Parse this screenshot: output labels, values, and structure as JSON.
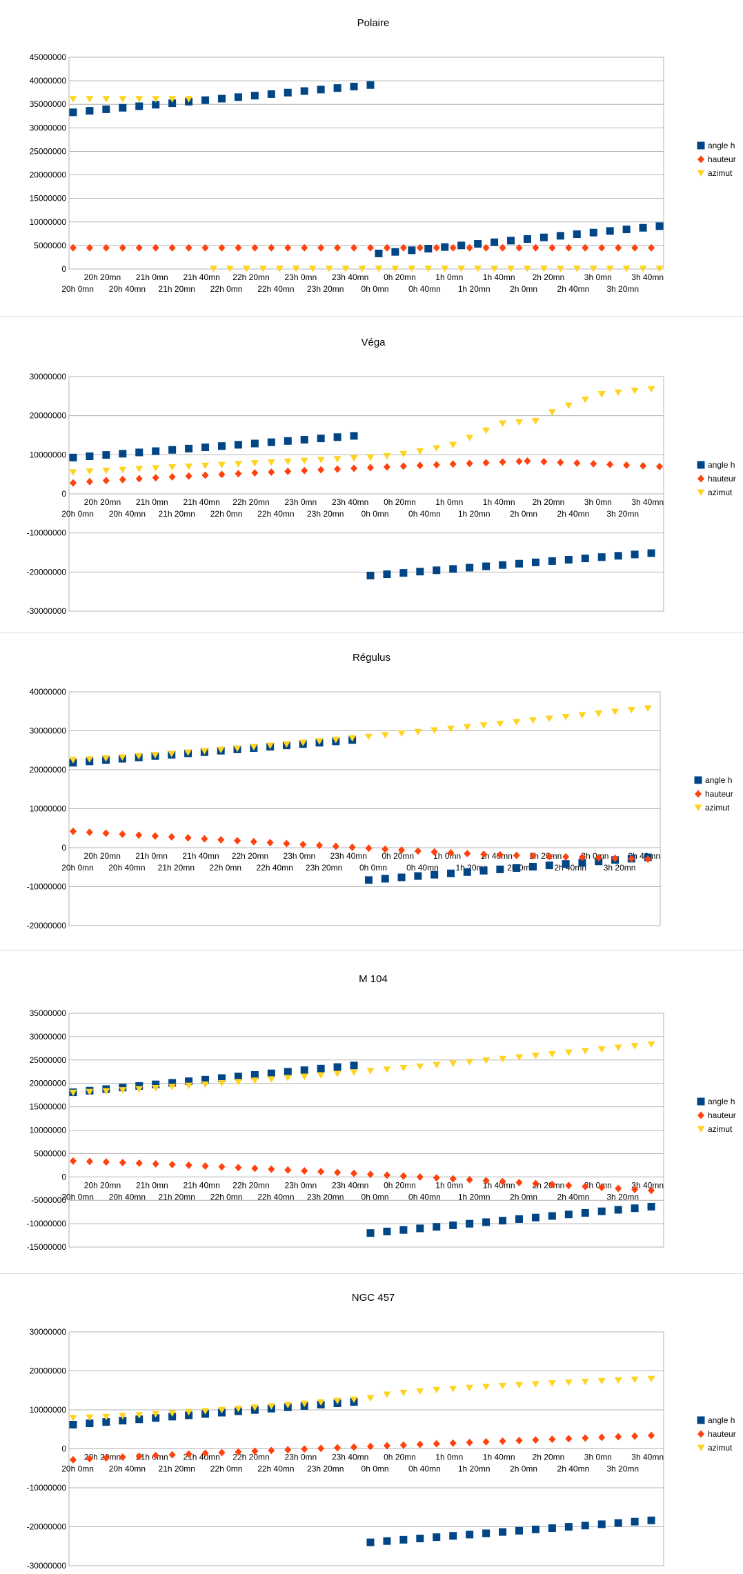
{
  "colors": {
    "angle_h": "#004586",
    "hauteur": "#ff420e",
    "azimut": "#ffd320"
  },
  "x_labels": [
    "20h 0mn",
    "20h 20mn",
    "20h 40mn",
    "21h 0mn",
    "21h 20mn",
    "21h 40mn",
    "22h 0mn",
    "22h 20mn",
    "22h 40mn",
    "23h 0mn",
    "23h 20mn",
    "23h 40mn",
    "0h 0mn",
    "0h 20mn",
    "0h 40mn",
    "1h 0mn",
    "1h 20mn",
    "1h 40mn",
    "2h 0mn",
    "2h 20mn",
    "2h 40mn",
    "3h 0mn",
    "3h 20mn",
    "3h 40mn"
  ],
  "chart_data": [
    {
      "type": "scatter",
      "title": "Polaire",
      "ylim": [
        0,
        45000000
      ],
      "ystep": 5000000,
      "yticks": [
        "0",
        "5000000",
        "10000000",
        "15000000",
        "20000000",
        "25000000",
        "30000000",
        "35000000",
        "40000000",
        "45000000"
      ],
      "x_label_row_mode": "zero",
      "grid": true,
      "legend": "right",
      "series": [
        {
          "name": "angle h",
          "marker": "square",
          "segments": [
            {
              "start": 0,
              "end": 36,
              "from": 33300000,
              "to": 39100000,
              "curve": 1
            },
            {
              "start": 37,
              "end": 71,
              "from": 3300000,
              "to": 9100000,
              "curve": 1
            }
          ]
        },
        {
          "name": "hauteur",
          "marker": "diamond",
          "segments": [
            {
              "start": 0,
              "end": 71,
              "from": 4500000,
              "to": 4500000,
              "curve": 1
            }
          ]
        },
        {
          "name": "azimut",
          "marker": "triangle",
          "segments": [
            {
              "start": 0,
              "end": 15,
              "from": 36100000,
              "to": 36100000,
              "curve": 1
            },
            {
              "start": 17,
              "end": 71,
              "from": 50000,
              "to": 50000,
              "curve": 1
            }
          ]
        }
      ]
    },
    {
      "type": "scatter",
      "title": "Véga",
      "ylim": [
        -30000000,
        30000000
      ],
      "ystep": 10000000,
      "yticks": [
        "-30000000",
        "-20000000",
        "-10000000",
        "0",
        "10000000",
        "20000000",
        "30000000"
      ],
      "x_label_row_mode": "zero",
      "grid": true,
      "legend": "right",
      "series": [
        {
          "name": "angle h",
          "marker": "square",
          "segments": [
            {
              "start": 0,
              "end": 35,
              "from": 9300000,
              "to": 15000000,
              "curve": 1
            },
            {
              "start": 36,
              "end": 71,
              "from": -20900000,
              "to": -15000000,
              "curve": 1
            }
          ]
        },
        {
          "name": "hauteur",
          "marker": "diamond",
          "segments": [
            {
              "start": 0,
              "end": 55,
              "from": 2800000,
              "to": 8400000,
              "curve": 0.85
            },
            {
              "start": 55,
              "end": 71,
              "from": 8400000,
              "to": 7000000,
              "curve": 1
            }
          ]
        },
        {
          "name": "azimut",
          "marker": "triangle",
          "segments": [
            {
              "start": 0,
              "end": 36,
              "from": 5500000,
              "to": 9300000,
              "curve": 1
            },
            {
              "start": 36,
              "end": 46,
              "from": 9300000,
              "to": 12500000,
              "curve": 1.4
            },
            {
              "start": 46,
              "end": 52,
              "from": 12500000,
              "to": 18000000,
              "curve": 1
            },
            {
              "start": 52,
              "end": 56,
              "from": 18000000,
              "to": 18600000,
              "curve": 1
            },
            {
              "start": 56,
              "end": 64,
              "from": 18600000,
              "to": 25500000,
              "curve": 0.8
            },
            {
              "start": 64,
              "end": 71,
              "from": 25500000,
              "to": 27000000,
              "curve": 1
            }
          ]
        }
      ]
    },
    {
      "type": "scatter",
      "title": "Régulus",
      "ylim": [
        -20000000,
        40000000
      ],
      "ystep": 10000000,
      "yticks": [
        "-20000000",
        "-10000000",
        "0",
        "10000000",
        "20000000",
        "30000000",
        "40000000"
      ],
      "x_label_row_mode": "zero",
      "grid": true,
      "legend": "right",
      "series": [
        {
          "name": "angle h",
          "marker": "square",
          "segments": [
            {
              "start": 0,
              "end": 35,
              "from": 21800000,
              "to": 27800000,
              "curve": 1
            },
            {
              "start": 36,
              "end": 71,
              "from": -8300000,
              "to": -2300000,
              "curve": 1
            }
          ]
        },
        {
          "name": "hauteur",
          "marker": "diamond",
          "segments": [
            {
              "start": 0,
              "end": 44,
              "from": 4200000,
              "to": -1100000,
              "curve": 1
            },
            {
              "start": 44,
              "end": 71,
              "from": -1100000,
              "to": -3000000,
              "curve": 0.8
            }
          ]
        },
        {
          "name": "azimut",
          "marker": "triangle",
          "segments": [
            {
              "start": 0,
              "end": 71,
              "from": 22500000,
              "to": 36000000,
              "curve": 1.2
            }
          ]
        }
      ]
    },
    {
      "type": "scatter",
      "title": "M 104",
      "ylim": [
        -15000000,
        35000000
      ],
      "ystep": 5000000,
      "yticks": [
        "-15000000",
        "-10000000",
        "-5000000",
        "0",
        "5000000",
        "10000000",
        "15000000",
        "20000000",
        "25000000",
        "30000000",
        "35000000"
      ],
      "x_label_row_mode": "zero",
      "grid": true,
      "legend": "right",
      "series": [
        {
          "name": "angle h",
          "marker": "square",
          "segments": [
            {
              "start": 0,
              "end": 35,
              "from": 18100000,
              "to": 24000000,
              "curve": 1
            },
            {
              "start": 36,
              "end": 71,
              "from": -12000000,
              "to": -6200000,
              "curve": 1
            }
          ]
        },
        {
          "name": "hauteur",
          "marker": "diamond",
          "segments": [
            {
              "start": 0,
              "end": 71,
              "from": 3400000,
              "to": -3000000,
              "curve": 1.2
            }
          ]
        },
        {
          "name": "azimut",
          "marker": "triangle",
          "segments": [
            {
              "start": 0,
              "end": 71,
              "from": 18000000,
              "to": 28500000,
              "curve": 1.2
            }
          ]
        }
      ]
    },
    {
      "type": "scatter",
      "title": "NGC 457",
      "ylim": [
        -30000000,
        30000000
      ],
      "ystep": 10000000,
      "yticks": [
        "-30000000",
        "-20000000",
        "-10000000",
        "0",
        "10000000",
        "20000000",
        "30000000"
      ],
      "x_label_row_mode": "zero",
      "grid": true,
      "legend": "right",
      "series": [
        {
          "name": "angle h",
          "marker": "square",
          "segments": [
            {
              "start": 0,
              "end": 35,
              "from": 6200000,
              "to": 12200000,
              "curve": 1
            },
            {
              "start": 36,
              "end": 71,
              "from": -24000000,
              "to": -18200000,
              "curve": 1
            }
          ]
        },
        {
          "name": "hauteur",
          "marker": "diamond",
          "segments": [
            {
              "start": 0,
              "end": 71,
              "from": -2800000,
              "to": 3500000,
              "curve": 0.9
            }
          ]
        },
        {
          "name": "azimut",
          "marker": "triangle",
          "segments": [
            {
              "start": 0,
              "end": 36,
              "from": 7900000,
              "to": 13000000,
              "curve": 1.3
            },
            {
              "start": 36,
              "end": 71,
              "from": 13000000,
              "to": 18000000,
              "curve": 0.6
            }
          ]
        }
      ]
    }
  ]
}
